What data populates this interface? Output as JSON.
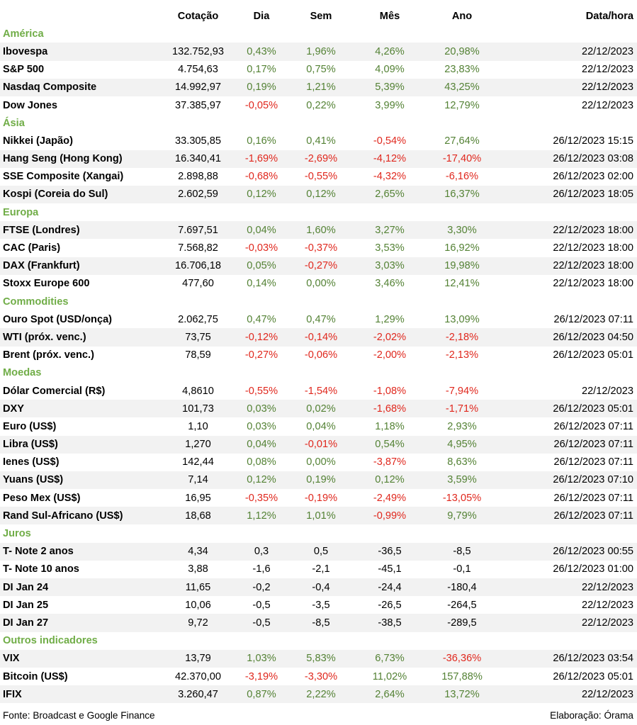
{
  "header": {
    "col_name": "",
    "col_cotacao": "Cotação",
    "col_dia": "Dia",
    "col_sem": "Sem",
    "col_mes": "Mês",
    "col_ano": "Ano",
    "col_data": "Data/hora"
  },
  "colors": {
    "positive": "#548235",
    "negative": "#e0281e",
    "section": "#70ad47",
    "stripe": "#f2f2f2"
  },
  "sections": [
    {
      "title": "América",
      "colored": true,
      "rows": [
        {
          "name": "Ibovespa",
          "cotacao": "132.752,93",
          "dia": "0,43%",
          "sem": "1,96%",
          "mes": "4,26%",
          "ano": "20,98%",
          "data": "22/12/2023"
        },
        {
          "name": "S&P 500",
          "cotacao": "4.754,63",
          "dia": "0,17%",
          "sem": "0,75%",
          "mes": "4,09%",
          "ano": "23,83%",
          "data": "22/12/2023"
        },
        {
          "name": "Nasdaq Composite",
          "cotacao": "14.992,97",
          "dia": "0,19%",
          "sem": "1,21%",
          "mes": "5,39%",
          "ano": "43,25%",
          "data": "22/12/2023"
        },
        {
          "name": "Dow Jones",
          "cotacao": "37.385,97",
          "dia": "-0,05%",
          "sem": "0,22%",
          "mes": "3,99%",
          "ano": "12,79%",
          "data": "22/12/2023"
        }
      ]
    },
    {
      "title": "Ásia",
      "colored": true,
      "rows": [
        {
          "name": "Nikkei (Japão)",
          "cotacao": "33.305,85",
          "dia": "0,16%",
          "sem": "0,41%",
          "mes": "-0,54%",
          "ano": "27,64%",
          "data": "26/12/2023 15:15"
        },
        {
          "name": "Hang Seng (Hong Kong)",
          "cotacao": "16.340,41",
          "dia": "-1,69%",
          "sem": "-2,69%",
          "mes": "-4,12%",
          "ano": "-17,40%",
          "data": "26/12/2023 03:08"
        },
        {
          "name": "SSE Composite (Xangai)",
          "cotacao": "2.898,88",
          "dia": "-0,68%",
          "sem": "-0,55%",
          "mes": "-4,32%",
          "ano": "-6,16%",
          "data": "26/12/2023 02:00"
        },
        {
          "name": "Kospi (Coreia do Sul)",
          "cotacao": "2.602,59",
          "dia": "0,12%",
          "sem": "0,12%",
          "mes": "2,65%",
          "ano": "16,37%",
          "data": "26/12/2023 18:05"
        }
      ]
    },
    {
      "title": "Europa",
      "colored": true,
      "rows": [
        {
          "name": "FTSE (Londres)",
          "cotacao": "7.697,51",
          "dia": "0,04%",
          "sem": "1,60%",
          "mes": "3,27%",
          "ano": "3,30%",
          "data": "22/12/2023 18:00"
        },
        {
          "name": "CAC (Paris)",
          "cotacao": "7.568,82",
          "dia": "-0,03%",
          "sem": "-0,37%",
          "mes": "3,53%",
          "ano": "16,92%",
          "data": "22/12/2023 18:00"
        },
        {
          "name": "DAX (Frankfurt)",
          "cotacao": "16.706,18",
          "dia": "0,05%",
          "sem": "-0,27%",
          "mes": "3,03%",
          "ano": "19,98%",
          "data": "22/12/2023 18:00"
        },
        {
          "name": "Stoxx Europe 600",
          "cotacao": "477,60",
          "dia": "0,14%",
          "sem": "0,00%",
          "mes": "3,46%",
          "ano": "12,41%",
          "data": "22/12/2023 18:00"
        }
      ]
    },
    {
      "title": "Commodities",
      "colored": true,
      "rows": [
        {
          "name": "Ouro Spot (USD/onça)",
          "cotacao": "2.062,75",
          "dia": "0,47%",
          "sem": "0,47%",
          "mes": "1,29%",
          "ano": "13,09%",
          "data": "26/12/2023 07:11"
        },
        {
          "name": "WTI (próx. venc.)",
          "cotacao": "73,75",
          "dia": "-0,12%",
          "sem": "-0,14%",
          "mes": "-2,02%",
          "ano": "-2,18%",
          "data": "26/12/2023 04:50"
        },
        {
          "name": "Brent (próx. venc.)",
          "cotacao": "78,59",
          "dia": "-0,27%",
          "sem": "-0,06%",
          "mes": "-2,00%",
          "ano": "-2,13%",
          "data": "26/12/2023 05:01"
        }
      ]
    },
    {
      "title": "Moedas",
      "colored": true,
      "rows": [
        {
          "name": "Dólar Comercial (R$)",
          "cotacao": "4,8610",
          "dia": "-0,55%",
          "sem": "-1,54%",
          "mes": "-1,08%",
          "ano": "-7,94%",
          "data": "22/12/2023"
        },
        {
          "name": "DXY",
          "cotacao": "101,73",
          "dia": "0,03%",
          "sem": "0,02%",
          "mes": "-1,68%",
          "ano": "-1,71%",
          "data": "26/12/2023 05:01"
        },
        {
          "name": "Euro (US$)",
          "cotacao": "1,10",
          "dia": "0,03%",
          "sem": "0,04%",
          "mes": "1,18%",
          "ano": "2,93%",
          "data": "26/12/2023 07:11"
        },
        {
          "name": "Libra (US$)",
          "cotacao": "1,270",
          "dia": "0,04%",
          "sem": "-0,01%",
          "mes": "0,54%",
          "ano": "4,95%",
          "data": "26/12/2023 07:11"
        },
        {
          "name": "Ienes (US$)",
          "cotacao": "142,44",
          "dia": "0,08%",
          "sem": "0,00%",
          "mes": "-3,87%",
          "ano": "8,63%",
          "data": "26/12/2023 07:11"
        },
        {
          "name": "Yuans (US$)",
          "cotacao": "7,14",
          "dia": "0,12%",
          "sem": "0,19%",
          "mes": "0,12%",
          "ano": "3,59%",
          "data": "26/12/2023 07:10"
        },
        {
          "name": "Peso Mex (US$)",
          "cotacao": "16,95",
          "dia": "-0,35%",
          "sem": "-0,19%",
          "mes": "-2,49%",
          "ano": "-13,05%",
          "data": "26/12/2023 07:11"
        },
        {
          "name": "Rand Sul-Africano (US$)",
          "cotacao": "18,68",
          "dia": "1,12%",
          "sem": "1,01%",
          "mes": "-0,99%",
          "ano": "9,79%",
          "data": "26/12/2023 07:11"
        }
      ]
    },
    {
      "title": "Juros",
      "colored": false,
      "rows": [
        {
          "name": "T- Note 2 anos",
          "cotacao": "4,34",
          "dia": "0,3",
          "sem": "0,5",
          "mes": "-36,5",
          "ano": "-8,5",
          "data": "26/12/2023 00:55"
        },
        {
          "name": "T- Note 10 anos",
          "cotacao": "3,88",
          "dia": "-1,6",
          "sem": "-2,1",
          "mes": "-45,1",
          "ano": "-0,1",
          "data": "26/12/2023 01:00"
        },
        {
          "name": "DI Jan 24",
          "cotacao": "11,65",
          "dia": "-0,2",
          "sem": "-0,4",
          "mes": "-24,4",
          "ano": "-180,4",
          "data": "22/12/2023"
        },
        {
          "name": "DI Jan 25",
          "cotacao": "10,06",
          "dia": "-0,5",
          "sem": "-3,5",
          "mes": "-26,5",
          "ano": "-264,5",
          "data": "22/12/2023"
        },
        {
          "name": "DI Jan 27",
          "cotacao": "9,72",
          "dia": "-0,5",
          "sem": "-8,5",
          "mes": "-38,5",
          "ano": "-289,5",
          "data": "22/12/2023"
        }
      ]
    },
    {
      "title": "Outros indicadores",
      "colored": true,
      "rows": [
        {
          "name": "VIX",
          "cotacao": "13,79",
          "dia": "1,03%",
          "sem": "5,83%",
          "mes": "6,73%",
          "ano": "-36,36%",
          "data": "26/12/2023 03:54"
        },
        {
          "name": "Bitcoin (US$)",
          "cotacao": "42.370,00",
          "dia": "-3,19%",
          "sem": "-3,30%",
          "mes": "11,02%",
          "ano": "157,88%",
          "data": "26/12/2023 05:01"
        },
        {
          "name": "IFIX",
          "cotacao": "3.260,47",
          "dia": "0,87%",
          "sem": "2,22%",
          "mes": "2,64%",
          "ano": "13,72%",
          "data": "22/12/2023"
        }
      ]
    }
  ],
  "footer": {
    "source": "Fonte: Broadcast e Google Finance",
    "credit": "Elaboração: Órama"
  }
}
